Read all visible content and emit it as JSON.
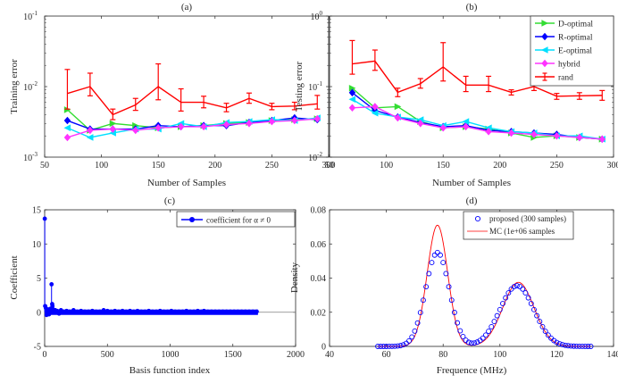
{
  "chart_data": [
    {
      "type": "line",
      "panel_label": "(a)",
      "xlabel": "Number of Samples",
      "ylabel": "Training error",
      "xlim": [
        50,
        300
      ],
      "ylim": [
        0.001,
        0.1
      ],
      "yscale": "log",
      "x_ticks": [
        "50",
        "100",
        "150",
        "200",
        "250",
        "300"
      ],
      "y_ticks": [
        {
          "base": "10",
          "exp": "-3"
        },
        {
          "base": "10",
          "exp": "-2"
        },
        {
          "base": "10",
          "exp": "-1"
        }
      ],
      "x": [
        70,
        90,
        110,
        130,
        150,
        170,
        190,
        210,
        230,
        250,
        270,
        290
      ],
      "series": [
        {
          "name": "D-optimal",
          "color": "#33dd33",
          "marker": "triangle-right",
          "values": [
            0.0047,
            0.0024,
            0.003,
            0.0028,
            0.0026,
            0.0027,
            0.0028,
            0.003,
            0.0031,
            0.0033,
            0.0034,
            0.0035
          ]
        },
        {
          "name": "R-optimal",
          "color": "#0000ff",
          "marker": "diamond",
          "values": [
            0.0033,
            0.0025,
            0.0025,
            0.0025,
            0.0028,
            0.0027,
            0.0028,
            0.0028,
            0.0031,
            0.0033,
            0.0036,
            0.0034
          ]
        },
        {
          "name": "E-optimal",
          "color": "#00e0ff",
          "marker": "triangle-left",
          "values": [
            0.0026,
            0.0019,
            0.0022,
            0.0025,
            0.0025,
            0.003,
            0.0027,
            0.0031,
            0.0032,
            0.0034,
            0.0033,
            0.0036
          ]
        },
        {
          "name": "hybrid",
          "color": "#ff33ff",
          "marker": "diamond",
          "values": [
            0.0019,
            0.0024,
            0.0025,
            0.0024,
            0.0026,
            0.0027,
            0.0027,
            0.0029,
            0.003,
            0.0032,
            0.0033,
            0.0035
          ]
        },
        {
          "name": "rand",
          "color": "#ff0000",
          "marker": "errorbar",
          "values": [
            0.008,
            0.01,
            0.004,
            0.0055,
            0.01,
            0.006,
            0.006,
            0.005,
            0.0068,
            0.0052,
            0.0053,
            0.0057
          ],
          "err_low": [
            0.0048,
            0.0074,
            0.0034,
            0.0046,
            0.0065,
            0.0045,
            0.005,
            0.0044,
            0.0058,
            0.0047,
            0.0047,
            0.0048
          ],
          "err_high": [
            0.0175,
            0.0155,
            0.0048,
            0.0068,
            0.021,
            0.0093,
            0.0073,
            0.0058,
            0.0081,
            0.0058,
            0.006,
            0.0075
          ]
        }
      ]
    },
    {
      "type": "line",
      "panel_label": "(b)",
      "xlabel": "Number of Samples",
      "ylabel": "Testing error",
      "xlim": [
        50,
        300
      ],
      "ylim": [
        0.01,
        1
      ],
      "yscale": "log",
      "x_ticks": [
        "50",
        "100",
        "150",
        "200",
        "250",
        "300"
      ],
      "y_ticks": [
        {
          "base": "10",
          "exp": "-2"
        },
        {
          "base": "10",
          "exp": "-1"
        },
        {
          "base": "10",
          "exp": "0"
        }
      ],
      "legend_position": "top-right",
      "x": [
        70,
        90,
        110,
        130,
        150,
        170,
        190,
        210,
        230,
        250,
        270,
        290
      ],
      "series": [
        {
          "name": "D-optimal",
          "color": "#33dd33",
          "marker": "triangle-right",
          "values": [
            0.095,
            0.05,
            0.052,
            0.032,
            0.026,
            0.027,
            0.025,
            0.022,
            0.019,
            0.02,
            0.019,
            0.018
          ]
        },
        {
          "name": "R-optimal",
          "color": "#0000ff",
          "marker": "diamond",
          "values": [
            0.082,
            0.046,
            0.037,
            0.031,
            0.027,
            0.028,
            0.024,
            0.023,
            0.022,
            0.021,
            0.019,
            0.018
          ]
        },
        {
          "name": "E-optimal",
          "color": "#00e0ff",
          "marker": "triangle-left",
          "values": [
            0.066,
            0.042,
            0.037,
            0.034,
            0.028,
            0.032,
            0.026,
            0.023,
            0.022,
            0.02,
            0.02,
            0.018
          ]
        },
        {
          "name": "hybrid",
          "color": "#ff33ff",
          "marker": "diamond",
          "values": [
            0.05,
            0.052,
            0.036,
            0.03,
            0.026,
            0.027,
            0.023,
            0.022,
            0.021,
            0.02,
            0.019,
            0.018
          ]
        },
        {
          "name": "rand",
          "color": "#ff0000",
          "marker": "errorbar",
          "values": [
            0.21,
            0.23,
            0.083,
            0.11,
            0.19,
            0.105,
            0.105,
            0.083,
            0.1,
            0.073,
            0.074,
            0.075
          ],
          "err_low": [
            0.15,
            0.17,
            0.072,
            0.095,
            0.12,
            0.085,
            0.085,
            0.076,
            0.088,
            0.066,
            0.066,
            0.064
          ],
          "err_high": [
            0.45,
            0.33,
            0.095,
            0.13,
            0.42,
            0.14,
            0.14,
            0.09,
            0.115,
            0.08,
            0.082,
            0.088
          ]
        }
      ]
    },
    {
      "type": "stem",
      "panel_label": "(c)",
      "xlabel": "Basis function index",
      "ylabel": "Coefficient",
      "xlim": [
        0,
        2000
      ],
      "ylim": [
        -5,
        15
      ],
      "x_ticks": [
        "0",
        "500",
        "1000",
        "1500",
        "2000"
      ],
      "y_ticks": [
        "-5",
        "0",
        "5",
        "10",
        "15"
      ],
      "legend_position": "top-right",
      "series": [
        {
          "name": "coefficient for α ≠ 0",
          "color": "#0000ff",
          "points": [
            [
              1,
              13.7
            ],
            [
              4,
              0.9
            ],
            [
              10,
              0.6
            ],
            [
              15,
              -0.4
            ],
            [
              20,
              0.3
            ],
            [
              28,
              0.4
            ],
            [
              35,
              -0.3
            ],
            [
              45,
              0.5
            ],
            [
              55,
              4.1
            ],
            [
              60,
              1.2
            ],
            [
              62,
              0.9
            ],
            [
              70,
              0.4
            ],
            [
              85,
              0.3
            ],
            [
              100,
              0.2
            ],
            [
              115,
              -0.2
            ],
            [
              130,
              0.3
            ],
            [
              150,
              0.1
            ],
            [
              175,
              0.2
            ],
            [
              200,
              0.1
            ],
            [
              230,
              0.3
            ],
            [
              260,
              0.1
            ],
            [
              290,
              0.2
            ],
            [
              320,
              0.1
            ],
            [
              350,
              0.1
            ],
            [
              380,
              0.2
            ],
            [
              410,
              0.1
            ],
            [
              440,
              0.1
            ],
            [
              470,
              0.3
            ],
            [
              500,
              0.2
            ],
            [
              530,
              0.1
            ],
            [
              560,
              0.2
            ],
            [
              590,
              0.1
            ],
            [
              620,
              0.2
            ],
            [
              650,
              0.1
            ],
            [
              680,
              0.2
            ],
            [
              710,
              0.1
            ],
            [
              740,
              0.2
            ],
            [
              770,
              0.1
            ],
            [
              800,
              0.1
            ],
            [
              830,
              0.2
            ],
            [
              860,
              0.1
            ],
            [
              890,
              0.1
            ],
            [
              920,
              0.2
            ],
            [
              950,
              0.1
            ],
            [
              980,
              0.1
            ],
            [
              1010,
              0.2
            ],
            [
              1040,
              0.1
            ],
            [
              1070,
              0.1
            ],
            [
              1100,
              0.1
            ],
            [
              1130,
              0.2
            ],
            [
              1160,
              0.1
            ],
            [
              1190,
              0.1
            ],
            [
              1220,
              0.2
            ],
            [
              1250,
              0.1
            ],
            [
              1270,
              0.2
            ],
            [
              1300,
              0.1
            ],
            [
              1330,
              0.1
            ],
            [
              1360,
              0.1
            ],
            [
              1390,
              0.1
            ],
            [
              1420,
              0.1
            ],
            [
              1450,
              0.1
            ],
            [
              1480,
              0.1
            ],
            [
              1510,
              0.1
            ],
            [
              1540,
              0.1
            ],
            [
              1570,
              0.1
            ],
            [
              1600,
              0.1
            ],
            [
              1630,
              0.1
            ],
            [
              1660,
              0.1
            ],
            [
              1690,
              0.1
            ]
          ]
        }
      ]
    },
    {
      "type": "line",
      "panel_label": "(d)",
      "xlabel": "Frequence (MHz)",
      "ylabel": "Density",
      "xlim": [
        40,
        140
      ],
      "ylim": [
        0,
        0.08
      ],
      "x_ticks": [
        "40",
        "60",
        "80",
        "100",
        "120",
        "140"
      ],
      "y_ticks": [
        "0",
        "0.02",
        "0.04",
        "0.06",
        "0.08"
      ],
      "legend_position": "top-right",
      "mixture_components": [
        {
          "name": "proposed (300 samples)",
          "color": "#0000ff",
          "marker": "circle",
          "x_range": [
            57,
            132
          ],
          "x_step": 1,
          "peaks": [
            {
              "mean": 78.0,
              "sd": 4.2,
              "height": 0.055
            },
            {
              "mean": 106.0,
              "sd": 6.0,
              "height": 0.0355
            }
          ]
        },
        {
          "name": "MC (1e+06 samples",
          "color": "#ff0000",
          "marker": "none",
          "x_range": [
            57,
            132
          ],
          "x_step": 0.25,
          "peaks": [
            {
              "mean": 78.0,
              "sd": 3.6,
              "height": 0.071
            },
            {
              "mean": 106.5,
              "sd": 5.5,
              "height": 0.0375
            }
          ]
        }
      ]
    }
  ]
}
